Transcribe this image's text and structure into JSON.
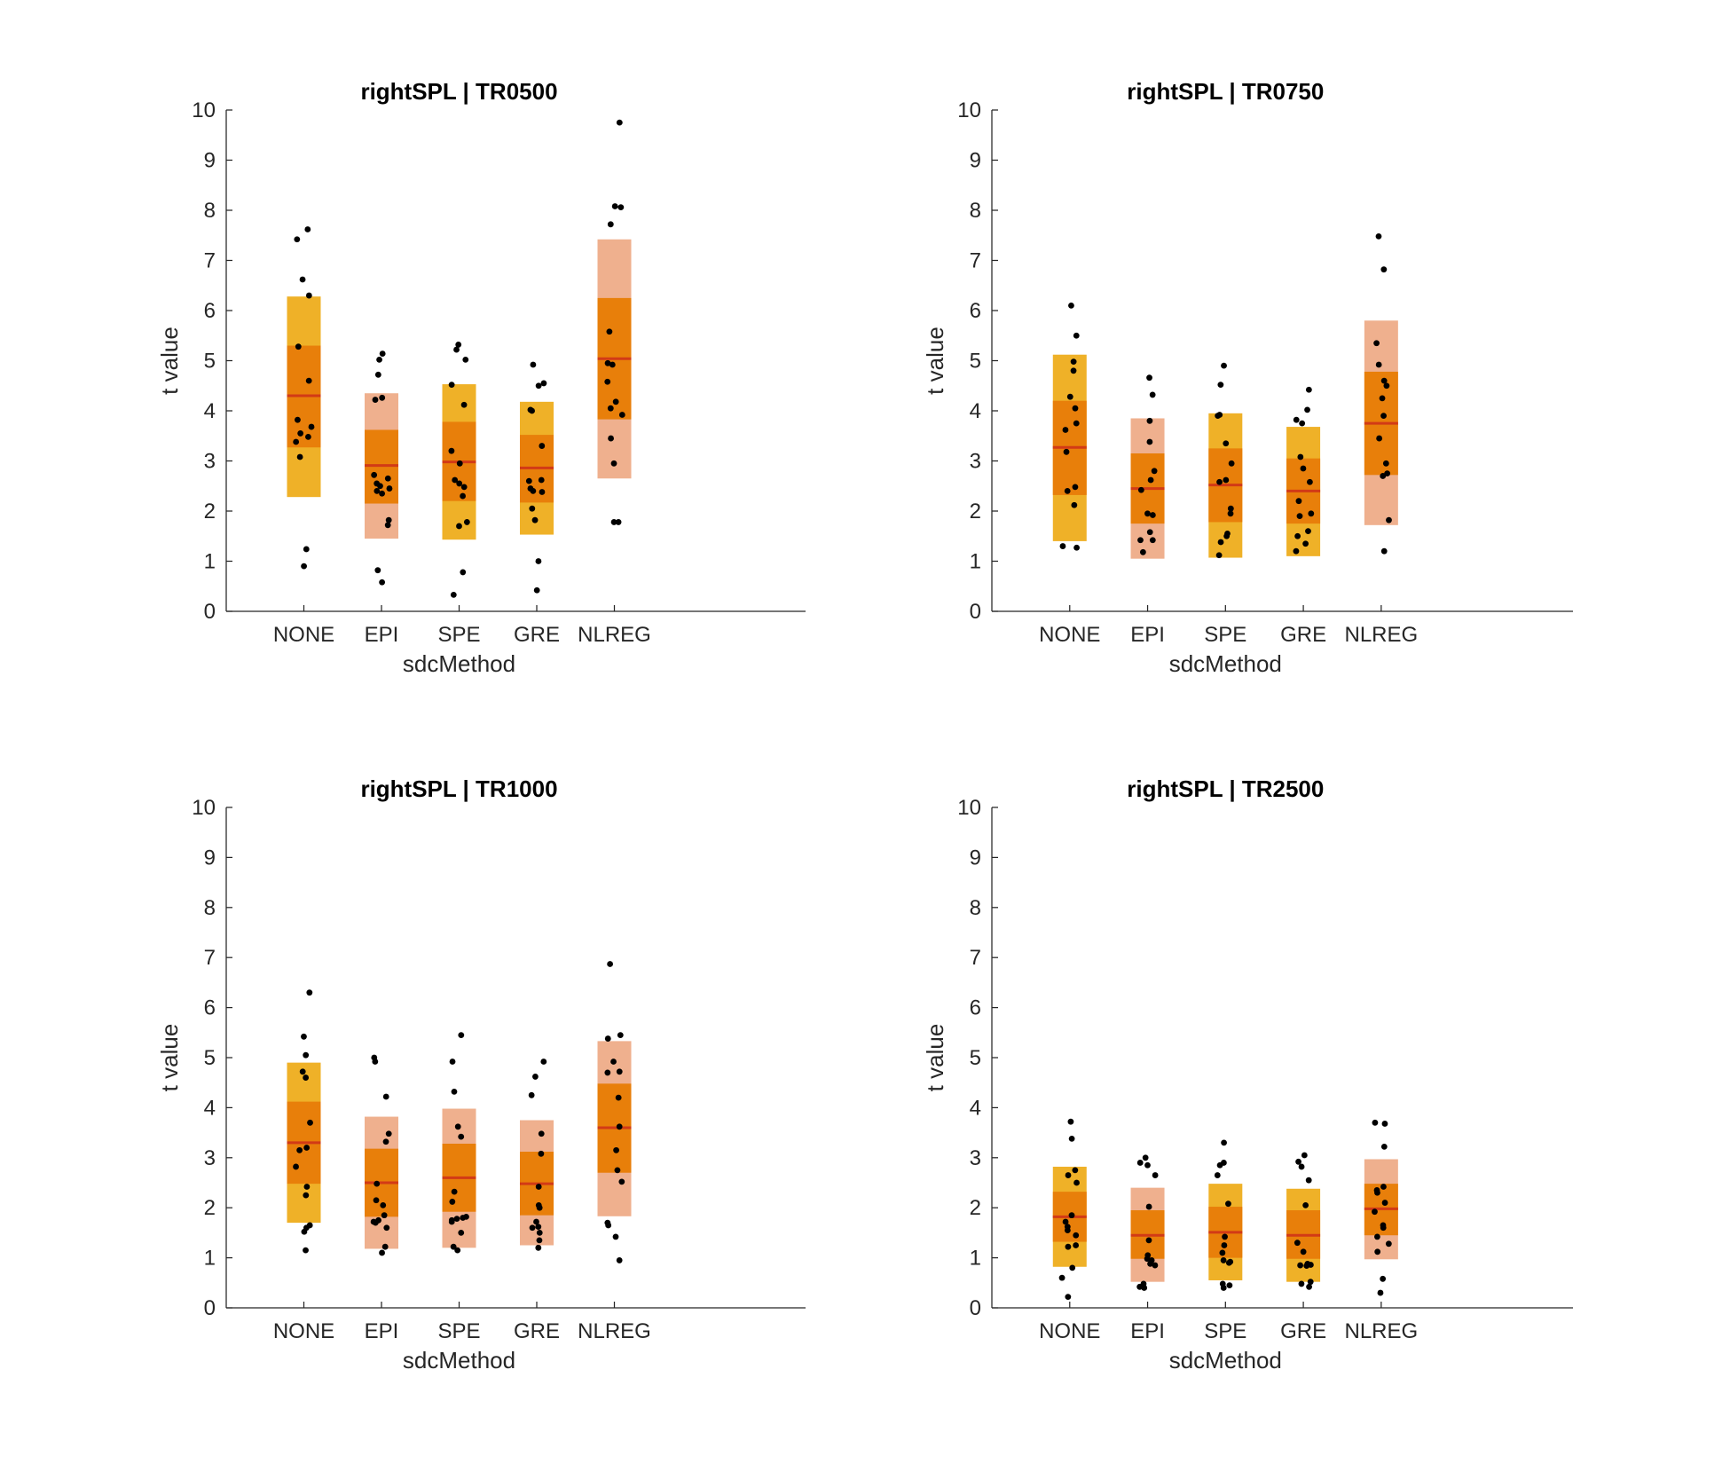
{
  "colors": {
    "outer_light": "#EFB128",
    "outer_pink": "#EFB08E",
    "iqr": "#E87F0A",
    "median": "#D23A16",
    "points": "#000000"
  },
  "chart_data": [
    {
      "type": "box",
      "title": "rightSPL | TR0500",
      "xlabel": "sdcMethod",
      "ylabel": "t value",
      "ylim": [
        0,
        10
      ],
      "yticks": [
        "0",
        "1",
        "2",
        "3",
        "4",
        "5",
        "6",
        "7",
        "8",
        "9",
        "10"
      ],
      "categories": [
        "NONE",
        "EPI",
        "SPE",
        "GRE",
        "NLREG"
      ],
      "boxes": [
        {
          "outer": [
            2.28,
            6.28
          ],
          "outer_color": "light",
          "iqr": [
            3.27,
            5.3
          ],
          "median": 4.3,
          "points": [
            7.62,
            7.42,
            6.62,
            6.3,
            5.28,
            4.6,
            3.82,
            3.68,
            3.55,
            3.48,
            3.38,
            3.08,
            1.24,
            0.9
          ]
        },
        {
          "outer": [
            1.45,
            4.35
          ],
          "outer_color": "pink",
          "iqr": [
            2.15,
            3.62
          ],
          "median": 2.91,
          "points": [
            5.14,
            5.02,
            4.72,
            4.26,
            4.22,
            2.72,
            2.65,
            2.55,
            2.5,
            2.45,
            2.4,
            2.35,
            1.82,
            1.72,
            0.82,
            0.58
          ]
        },
        {
          "outer": [
            1.43,
            4.53
          ],
          "outer_color": "light",
          "iqr": [
            2.2,
            3.78
          ],
          "median": 2.98,
          "points": [
            5.32,
            5.22,
            5.02,
            4.52,
            4.12,
            3.2,
            2.95,
            2.62,
            2.55,
            2.48,
            2.3,
            1.78,
            1.7,
            0.78,
            0.33
          ]
        },
        {
          "outer": [
            1.53,
            4.18
          ],
          "outer_color": "light",
          "iqr": [
            2.17,
            3.52
          ],
          "median": 2.86,
          "points": [
            4.92,
            4.55,
            4.5,
            4.02,
            4.0,
            3.3,
            2.62,
            2.6,
            2.45,
            2.4,
            2.38,
            2.05,
            1.82,
            1.0,
            0.42
          ]
        },
        {
          "outer": [
            2.65,
            7.42
          ],
          "outer_color": "pink",
          "iqr": [
            3.83,
            6.25
          ],
          "median": 5.04,
          "points": [
            9.75,
            8.08,
            8.06,
            7.72,
            5.58,
            4.95,
            4.92,
            4.58,
            4.18,
            4.05,
            3.92,
            3.45,
            2.95,
            1.78,
            1.78
          ]
        }
      ]
    },
    {
      "type": "box",
      "title": "rightSPL | TR0750",
      "xlabel": "sdcMethod",
      "ylabel": "t value",
      "ylim": [
        0,
        10
      ],
      "yticks": [
        "0",
        "1",
        "2",
        "3",
        "4",
        "5",
        "6",
        "7",
        "8",
        "9",
        "10"
      ],
      "categories": [
        "NONE",
        "EPI",
        "SPE",
        "GRE",
        "NLREG"
      ],
      "boxes": [
        {
          "outer": [
            1.4,
            5.12
          ],
          "outer_color": "light",
          "iqr": [
            2.32,
            4.2
          ],
          "median": 3.27,
          "points": [
            6.1,
            5.5,
            4.98,
            4.8,
            4.28,
            4.05,
            3.75,
            3.62,
            3.18,
            2.48,
            2.4,
            2.12,
            1.3,
            1.27
          ]
        },
        {
          "outer": [
            1.05,
            3.85
          ],
          "outer_color": "pink",
          "iqr": [
            1.75,
            3.15
          ],
          "median": 2.45,
          "points": [
            4.66,
            4.32,
            3.8,
            3.38,
            2.8,
            2.62,
            2.42,
            1.95,
            1.92,
            1.58,
            1.42,
            1.42,
            1.18
          ]
        },
        {
          "outer": [
            1.07,
            3.95
          ],
          "outer_color": "light",
          "iqr": [
            1.78,
            3.25
          ],
          "median": 2.52,
          "points": [
            4.9,
            4.52,
            3.92,
            3.9,
            3.35,
            2.95,
            2.62,
            2.58,
            2.05,
            1.95,
            1.55,
            1.5,
            1.38,
            1.12
          ]
        },
        {
          "outer": [
            1.1,
            3.68
          ],
          "outer_color": "light",
          "iqr": [
            1.75,
            3.05
          ],
          "median": 2.4,
          "points": [
            4.42,
            4.02,
            3.82,
            3.75,
            3.08,
            2.85,
            2.58,
            2.2,
            1.95,
            1.9,
            1.6,
            1.5,
            1.35,
            1.2
          ]
        },
        {
          "outer": [
            1.72,
            5.8
          ],
          "outer_color": "pink",
          "iqr": [
            2.72,
            4.78
          ],
          "median": 3.75,
          "points": [
            7.48,
            6.82,
            5.35,
            4.92,
            4.6,
            4.5,
            4.25,
            3.9,
            3.45,
            2.95,
            2.75,
            2.7,
            1.82,
            1.2
          ]
        }
      ]
    },
    {
      "type": "box",
      "title": "rightSPL | TR1000",
      "xlabel": "sdcMethod",
      "ylabel": "t value",
      "ylim": [
        0,
        10
      ],
      "yticks": [
        "0",
        "1",
        "2",
        "3",
        "4",
        "5",
        "6",
        "7",
        "8",
        "9",
        "10"
      ],
      "categories": [
        "NONE",
        "EPI",
        "SPE",
        "GRE",
        "NLREG"
      ],
      "boxes": [
        {
          "outer": [
            1.7,
            4.9
          ],
          "outer_color": "light",
          "iqr": [
            2.48,
            4.12
          ],
          "median": 3.3,
          "points": [
            6.3,
            5.42,
            5.05,
            4.72,
            4.6,
            3.7,
            3.2,
            3.15,
            2.82,
            2.42,
            2.25,
            1.65,
            1.6,
            1.52,
            1.15
          ]
        },
        {
          "outer": [
            1.18,
            3.82
          ],
          "outer_color": "pink",
          "iqr": [
            1.82,
            3.18
          ],
          "median": 2.5,
          "points": [
            5.0,
            4.92,
            4.22,
            3.48,
            3.32,
            2.48,
            2.15,
            2.05,
            1.85,
            1.75,
            1.72,
            1.7,
            1.6,
            1.22,
            1.1
          ]
        },
        {
          "outer": [
            1.2,
            3.98
          ],
          "outer_color": "pink",
          "iqr": [
            1.92,
            3.28
          ],
          "median": 2.6,
          "points": [
            5.45,
            4.92,
            4.32,
            3.62,
            3.42,
            2.32,
            2.12,
            1.82,
            1.8,
            1.78,
            1.75,
            1.72,
            1.5,
            1.22,
            1.15
          ]
        },
        {
          "outer": [
            1.25,
            3.75
          ],
          "outer_color": "pink",
          "iqr": [
            1.85,
            3.12
          ],
          "median": 2.48,
          "points": [
            4.92,
            4.62,
            4.25,
            3.48,
            3.08,
            2.42,
            2.05,
            2.0,
            1.72,
            1.62,
            1.6,
            1.5,
            1.35,
            1.2
          ]
        },
        {
          "outer": [
            1.83,
            5.33
          ],
          "outer_color": "pink",
          "iqr": [
            2.7,
            4.48
          ],
          "median": 3.6,
          "points": [
            6.87,
            5.45,
            5.38,
            4.92,
            4.72,
            4.7,
            4.2,
            3.62,
            3.15,
            2.75,
            2.52,
            1.7,
            1.65,
            1.42,
            0.95
          ]
        }
      ]
    },
    {
      "type": "box",
      "title": "rightSPL | TR2500",
      "xlabel": "sdcMethod",
      "ylabel": "t value",
      "ylim": [
        0,
        10
      ],
      "yticks": [
        "0",
        "1",
        "2",
        "3",
        "4",
        "5",
        "6",
        "7",
        "8",
        "9",
        "10"
      ],
      "categories": [
        "NONE",
        "EPI",
        "SPE",
        "GRE",
        "NLREG"
      ],
      "boxes": [
        {
          "outer": [
            0.82,
            2.82
          ],
          "outer_color": "light",
          "iqr": [
            1.32,
            2.32
          ],
          "median": 1.82,
          "points": [
            3.72,
            3.38,
            2.75,
            2.65,
            2.5,
            1.85,
            1.72,
            1.62,
            1.55,
            1.45,
            1.25,
            1.22,
            0.8,
            0.6,
            0.22
          ]
        },
        {
          "outer": [
            0.52,
            2.4
          ],
          "outer_color": "pink",
          "iqr": [
            0.98,
            1.95
          ],
          "median": 1.45,
          "points": [
            3.0,
            2.9,
            2.85,
            2.65,
            2.02,
            1.35,
            1.05,
            0.98,
            0.95,
            0.88,
            0.85,
            0.48,
            0.42,
            0.4
          ]
        },
        {
          "outer": [
            0.55,
            2.48
          ],
          "outer_color": "light",
          "iqr": [
            1.0,
            2.02
          ],
          "median": 1.51,
          "points": [
            3.3,
            2.9,
            2.85,
            2.65,
            2.08,
            1.42,
            1.25,
            1.1,
            0.95,
            0.92,
            0.9,
            0.48,
            0.45,
            0.4
          ]
        },
        {
          "outer": [
            0.52,
            2.38
          ],
          "outer_color": "light",
          "iqr": [
            0.98,
            1.95
          ],
          "median": 1.45,
          "points": [
            3.05,
            2.92,
            2.82,
            2.55,
            2.05,
            1.3,
            1.12,
            0.88,
            0.86,
            0.85,
            0.84,
            0.52,
            0.48,
            0.42
          ]
        },
        {
          "outer": [
            0.97,
            2.97
          ],
          "outer_color": "pink",
          "iqr": [
            1.45,
            2.48
          ],
          "median": 1.98,
          "points": [
            3.7,
            3.68,
            3.22,
            2.42,
            2.35,
            2.3,
            2.1,
            1.92,
            1.65,
            1.6,
            1.42,
            1.28,
            1.12,
            0.58,
            0.3
          ]
        }
      ]
    }
  ]
}
